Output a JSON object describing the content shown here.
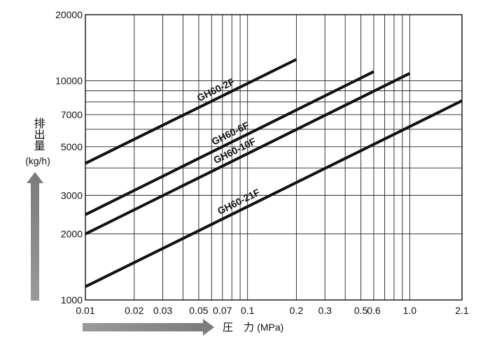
{
  "chart_data": {
    "type": "line",
    "title": "",
    "xlabel": "圧　力",
    "xlabel_unit": "(MPa)",
    "ylabel": "排出量",
    "ylabel_unit": "(kg/h)",
    "x_scale": "log",
    "y_scale": "log",
    "xlim": [
      0.01,
      2.1
    ],
    "ylim": [
      1000,
      20000
    ],
    "grid": true,
    "x_ticks": [
      0.01,
      0.02,
      0.03,
      0.05,
      0.07,
      0.1,
      0.2,
      0.3,
      0.5,
      0.6,
      1.0,
      2.1
    ],
    "x_tick_labels": [
      "0.01",
      "0.02",
      "0.03",
      "0.05",
      "0.07",
      "0.1",
      "0.2",
      "0.3",
      "0.5",
      "0.6",
      "1.0",
      "2.1"
    ],
    "x_grid": [
      0.02,
      0.03,
      0.04,
      0.05,
      0.06,
      0.07,
      0.08,
      0.09,
      0.1,
      0.2,
      0.3,
      0.4,
      0.5,
      0.6,
      0.7,
      0.8,
      0.9,
      1.0
    ],
    "y_ticks": [
      1000,
      2000,
      3000,
      5000,
      7000,
      10000,
      20000
    ],
    "y_tick_labels": [
      "1000",
      "2000",
      "3000",
      "5000",
      "7000",
      "10000",
      "20000"
    ],
    "y_grid": [
      2000,
      3000,
      4000,
      5000,
      6000,
      7000,
      8000,
      9000,
      10000
    ],
    "series": [
      {
        "name": "GH60-2F",
        "x": [
          0.01,
          0.2
        ],
        "y": [
          4200,
          12500
        ],
        "color": "#111111"
      },
      {
        "name": "GH60-6F",
        "x": [
          0.01,
          0.6
        ],
        "y": [
          2450,
          11000
        ],
        "color": "#111111"
      },
      {
        "name": "GH60-10F",
        "x": [
          0.01,
          1.0
        ],
        "y": [
          2000,
          10800
        ],
        "color": "#111111"
      },
      {
        "name": "GH60-21F",
        "x": [
          0.01,
          2.1
        ],
        "y": [
          1150,
          8100
        ],
        "color": "#111111"
      }
    ],
    "arrow_color": "#808080"
  }
}
